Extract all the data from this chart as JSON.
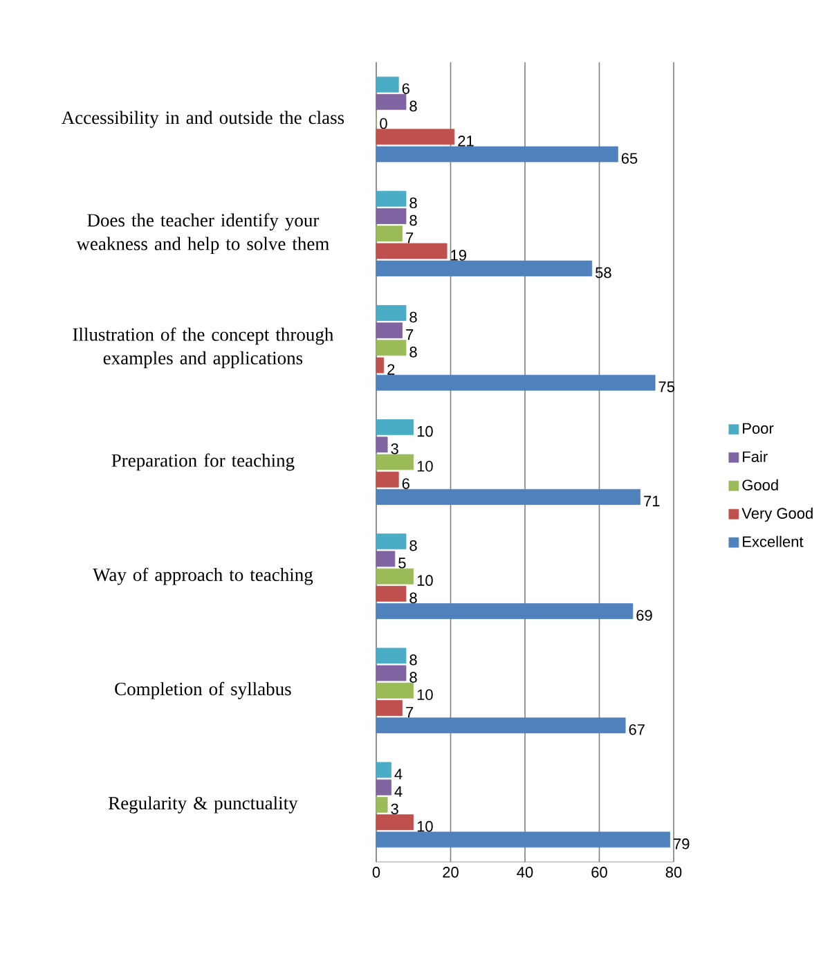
{
  "chart_data": {
    "type": "bar",
    "orientation": "horizontal",
    "categories": [
      "Accessibility in and outside the class",
      "Does the teacher identify your weakness and help to solve them",
      "Illustration of the concept through examples and applications",
      "Preparation for teaching",
      "Way of approach to teaching",
      "Completion of syllabus",
      "Regularity & punctuality"
    ],
    "series": [
      {
        "name": "Poor",
        "color": "#4bacc6",
        "values": [
          6,
          8,
          8,
          10,
          8,
          8,
          4
        ]
      },
      {
        "name": "Fair",
        "color": "#8064a2",
        "values": [
          8,
          8,
          7,
          3,
          5,
          8,
          4
        ]
      },
      {
        "name": "Good",
        "color": "#9bbb59",
        "values": [
          0,
          7,
          8,
          10,
          10,
          10,
          3
        ]
      },
      {
        "name": "Very Good",
        "color": "#c0504d",
        "values": [
          21,
          19,
          2,
          6,
          8,
          7,
          10
        ]
      },
      {
        "name": "Excellent",
        "color": "#4f81bd",
        "values": [
          65,
          58,
          75,
          71,
          69,
          67,
          79
        ]
      }
    ],
    "xlim": [
      0,
      80
    ],
    "xticks": [
      0,
      20,
      40,
      60,
      80
    ],
    "grid": "x",
    "legend": "right",
    "data_labels": true
  }
}
